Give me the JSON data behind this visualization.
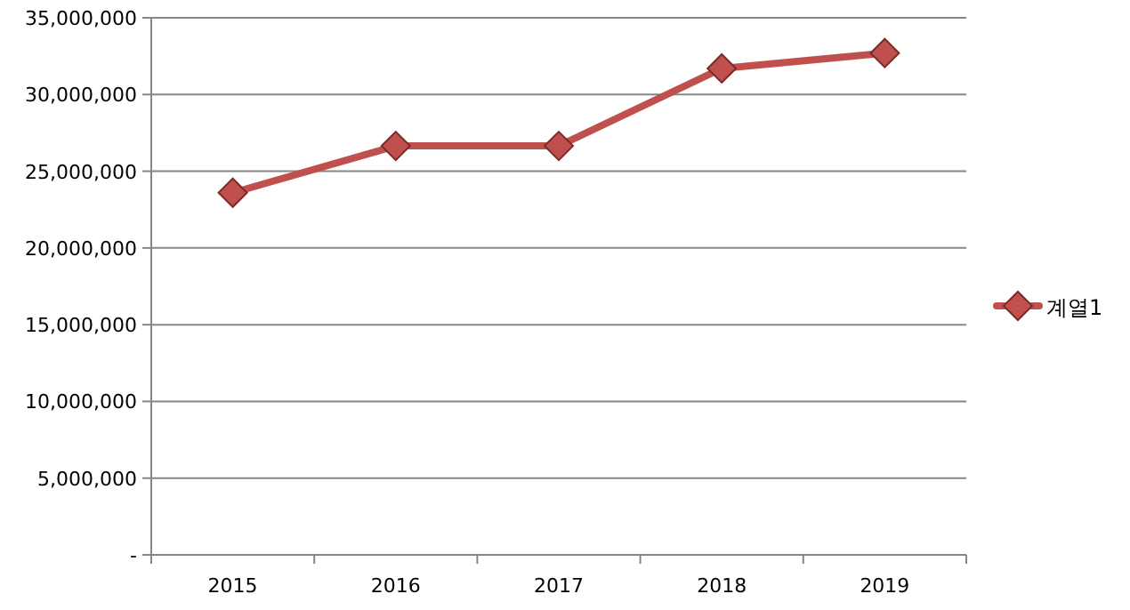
{
  "chart_data": {
    "type": "line",
    "categories": [
      "2015",
      "2016",
      "2017",
      "2018",
      "2019"
    ],
    "series": [
      {
        "name": "계열1",
        "color": "#c0504d",
        "values": [
          23600000,
          26650000,
          26650000,
          31700000,
          32700000
        ]
      }
    ],
    "ylim": [
      0,
      35000000
    ],
    "yticks": [
      {
        "value": 0,
        "label": "-"
      },
      {
        "value": 5000000,
        "label": "5,000,000"
      },
      {
        "value": 10000000,
        "label": "10,000,000"
      },
      {
        "value": 15000000,
        "label": "15,000,000"
      },
      {
        "value": 20000000,
        "label": "20,000,000"
      },
      {
        "value": 25000000,
        "label": "25,000,000"
      },
      {
        "value": 30000000,
        "label": "30,000,000"
      },
      {
        "value": 35000000,
        "label": "35,000,000"
      }
    ],
    "grid": "y",
    "legend": "right",
    "marker": "diamond",
    "line_style": "solid"
  }
}
